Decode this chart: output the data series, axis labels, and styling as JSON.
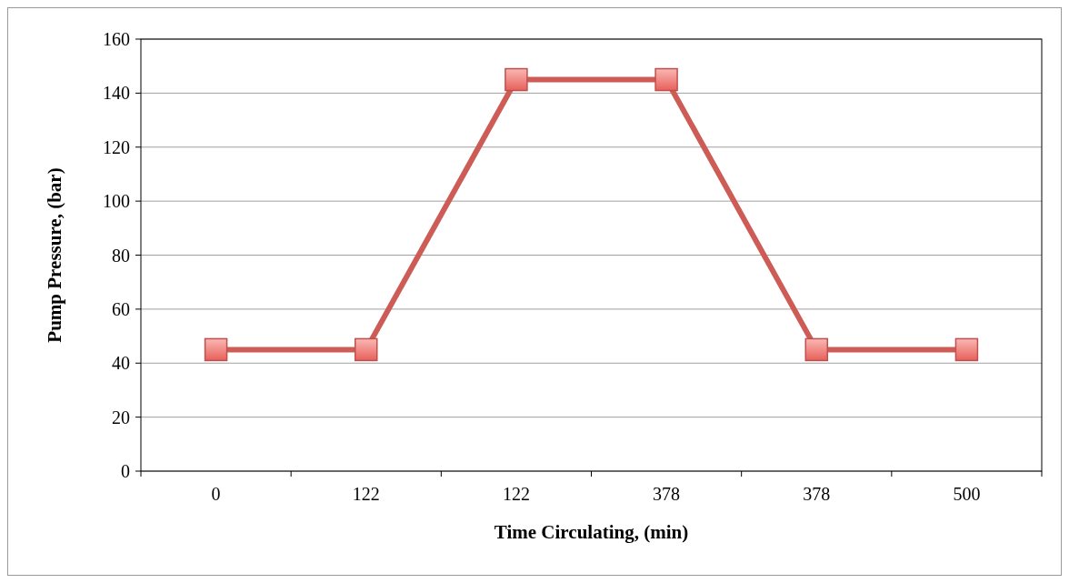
{
  "chart_data": {
    "type": "line",
    "xlabel": "Time Circulating, (min)",
    "ylabel": "Pump Pressure, (bar)",
    "categories": [
      "0",
      "122",
      "122",
      "378",
      "378",
      "500"
    ],
    "series": [
      {
        "color": "#cd5c57",
        "values": [
          45,
          45,
          145,
          145,
          45,
          45
        ]
      }
    ],
    "ylim": [
      0,
      160
    ],
    "yticks": [
      0,
      20,
      40,
      60,
      80,
      100,
      120,
      140,
      160
    ],
    "grid": "y",
    "marker": "square",
    "line_style": "solid"
  }
}
